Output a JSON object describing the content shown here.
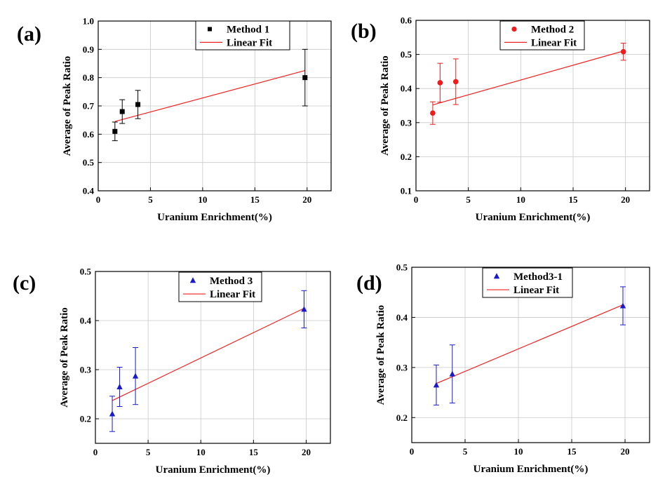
{
  "chart_data": [
    {
      "type": "scatter",
      "panel_label": "(a)",
      "xlabel": "Uranium Enrichment(%)",
      "ylabel": "Average of Peak Ratio",
      "xlim": [
        0,
        22.3
      ],
      "ylim": [
        0.4,
        1.0
      ],
      "x_ticks": [
        0,
        5,
        10,
        15,
        20
      ],
      "y_ticks": [
        0.4,
        0.5,
        0.6,
        0.7,
        0.8,
        0.9,
        1.0
      ],
      "y_tick_labels": [
        "0.4",
        "0.5",
        "0.6",
        "0.7",
        "0.8",
        "0.9",
        "1.0"
      ],
      "grid": true,
      "legend_position": "top-right",
      "series": [
        {
          "name": "Method 1",
          "marker": "square",
          "color": "#000000",
          "x": [
            1.6,
            2.3,
            3.8,
            19.8
          ],
          "y": [
            0.61,
            0.68,
            0.705,
            0.8
          ],
          "error": [
            0.033,
            0.042,
            0.05,
            0.1
          ]
        }
      ],
      "fit": {
        "name": "Linear Fit",
        "color": "#ee2222",
        "x": [
          1.6,
          19.8
        ],
        "y": [
          0.645,
          0.825
        ]
      }
    },
    {
      "type": "scatter",
      "panel_label": "(b)",
      "xlabel": "Uranium Enrichment(%)",
      "ylabel": "Average of Peak Ratio",
      "xlim": [
        0,
        22.3
      ],
      "ylim": [
        0.1,
        0.6
      ],
      "x_ticks": [
        0,
        5,
        10,
        15,
        20
      ],
      "y_ticks": [
        0.1,
        0.2,
        0.3,
        0.4,
        0.5,
        0.6
      ],
      "y_tick_labels": [
        "0.1",
        "0.2",
        "0.3",
        "0.4",
        "0.5",
        "0.6"
      ],
      "grid": true,
      "legend_position": "top-right",
      "series": [
        {
          "name": "Method 2",
          "marker": "circle",
          "color": "#ee1c1c",
          "x": [
            1.6,
            2.3,
            3.8,
            19.8
          ],
          "y": [
            0.328,
            0.417,
            0.42,
            0.508
          ],
          "error": [
            0.033,
            0.057,
            0.067,
            0.025
          ]
        }
      ],
      "fit": {
        "name": "Linear Fit",
        "color": "#ee2222",
        "x": [
          1.6,
          19.8
        ],
        "y": [
          0.352,
          0.51
        ]
      }
    },
    {
      "type": "scatter",
      "panel_label": "(c)",
      "xlabel": "Uranium Enrichment(%)",
      "ylabel": "Average of Peak Ratio",
      "xlim": [
        0,
        22.3
      ],
      "ylim": [
        0.15,
        0.5
      ],
      "x_ticks": [
        0,
        5,
        10,
        15,
        20
      ],
      "y_ticks": [
        0.2,
        0.3,
        0.4,
        0.5
      ],
      "y_tick_labels": [
        "0.2",
        "0.3",
        "0.4",
        "0.5"
      ],
      "grid": true,
      "legend_position": "top-right",
      "series": [
        {
          "name": "Method 3",
          "marker": "triangle",
          "color": "#1a1acc",
          "x": [
            1.6,
            2.3,
            3.8,
            19.8
          ],
          "y": [
            0.21,
            0.265,
            0.287,
            0.423
          ],
          "error": [
            0.036,
            0.04,
            0.058,
            0.038
          ]
        }
      ],
      "fit": {
        "name": "Linear Fit",
        "color": "#ee2222",
        "x": [
          1.6,
          19.8
        ],
        "y": [
          0.237,
          0.425
        ]
      }
    },
    {
      "type": "scatter",
      "panel_label": "(d)",
      "xlabel": "Uranium Enrichment(%)",
      "ylabel": "Average of Peak Ratio",
      "xlim": [
        0,
        22.3
      ],
      "ylim": [
        0.15,
        0.5
      ],
      "x_ticks": [
        0,
        5,
        10,
        15,
        20
      ],
      "y_ticks": [
        0.2,
        0.3,
        0.4,
        0.5
      ],
      "y_tick_labels": [
        "0.2",
        "0.3",
        "0.4",
        "0.5"
      ],
      "grid": true,
      "legend_position": "top-left",
      "series": [
        {
          "name": "Method3-1",
          "marker": "triangle",
          "color": "#1a1acc",
          "x": [
            2.3,
            3.8,
            19.8
          ],
          "y": [
            0.265,
            0.287,
            0.423
          ],
          "error": [
            0.04,
            0.058,
            0.038
          ]
        }
      ],
      "fit": {
        "name": "Linear Fit",
        "color": "#ee2222",
        "x": [
          2.3,
          19.8
        ],
        "y": [
          0.268,
          0.425
        ]
      }
    }
  ]
}
